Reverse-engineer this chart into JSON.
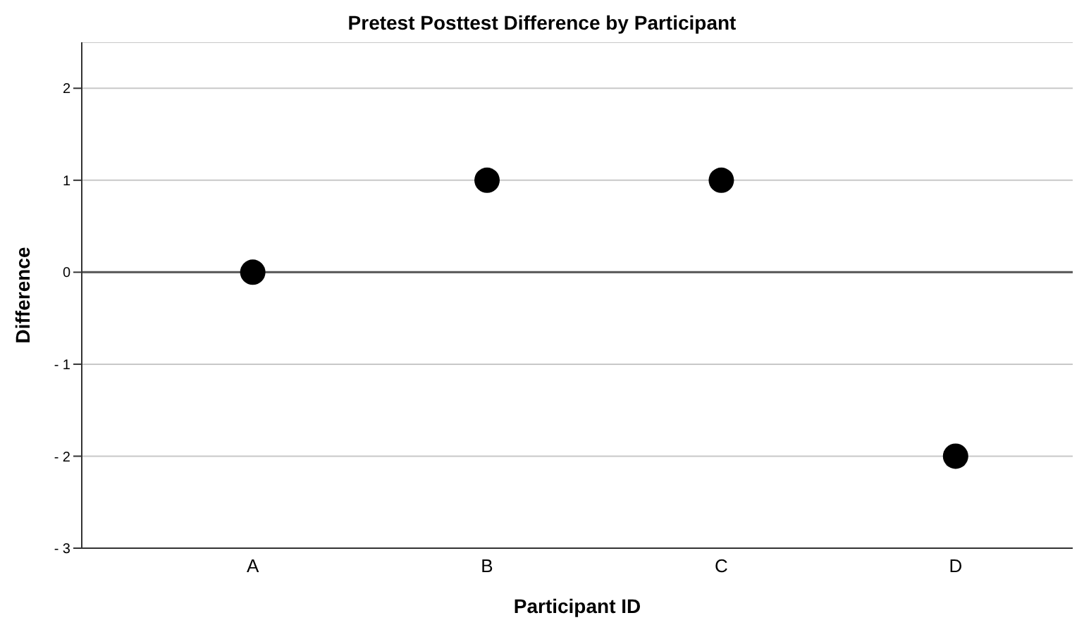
{
  "chart_data": {
    "type": "scatter",
    "title": "Pretest Posttest Difference by Participant",
    "xlabel": "Participant ID",
    "ylabel": "Difference",
    "categories": [
      "A",
      "B",
      "C",
      "D"
    ],
    "series": [
      {
        "color": "#000000",
        "values": [
          0,
          1,
          1,
          -2
        ]
      }
    ],
    "ylim": [
      -3,
      2.5
    ],
    "yticks": [
      {
        "value": -3,
        "label": "- 3"
      },
      {
        "value": -2,
        "label": "- 2"
      },
      {
        "value": -1,
        "label": "- 1"
      },
      0,
      1,
      2
    ],
    "grid": "y",
    "marker": "circle",
    "ref_lines": [
      {
        "axis": "y",
        "value": 0,
        "color": "#555555"
      }
    ]
  }
}
